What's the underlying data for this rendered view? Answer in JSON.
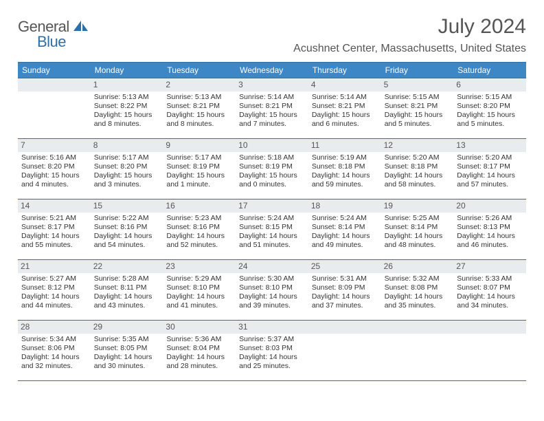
{
  "brand": {
    "word1": "General",
    "word2": "Blue"
  },
  "title": "July 2024",
  "location": "Acushnet Center, Massachusetts, United States",
  "colors": {
    "header_bg": "#3d87c7",
    "rule": "#2f6fa7",
    "daynum_bg": "#e9ecef",
    "text": "#333333",
    "muted": "#555555"
  },
  "day_names": [
    "Sunday",
    "Monday",
    "Tuesday",
    "Wednesday",
    "Thursday",
    "Friday",
    "Saturday"
  ],
  "weeks": [
    [
      {
        "n": "",
        "sunrise": "",
        "sunset": "",
        "daylight": ""
      },
      {
        "n": "1",
        "sunrise": "5:13 AM",
        "sunset": "8:22 PM",
        "daylight": "15 hours and 8 minutes."
      },
      {
        "n": "2",
        "sunrise": "5:13 AM",
        "sunset": "8:21 PM",
        "daylight": "15 hours and 8 minutes."
      },
      {
        "n": "3",
        "sunrise": "5:14 AM",
        "sunset": "8:21 PM",
        "daylight": "15 hours and 7 minutes."
      },
      {
        "n": "4",
        "sunrise": "5:14 AM",
        "sunset": "8:21 PM",
        "daylight": "15 hours and 6 minutes."
      },
      {
        "n": "5",
        "sunrise": "5:15 AM",
        "sunset": "8:21 PM",
        "daylight": "15 hours and 5 minutes."
      },
      {
        "n": "6",
        "sunrise": "5:15 AM",
        "sunset": "8:20 PM",
        "daylight": "15 hours and 5 minutes."
      }
    ],
    [
      {
        "n": "7",
        "sunrise": "5:16 AM",
        "sunset": "8:20 PM",
        "daylight": "15 hours and 4 minutes."
      },
      {
        "n": "8",
        "sunrise": "5:17 AM",
        "sunset": "8:20 PM",
        "daylight": "15 hours and 3 minutes."
      },
      {
        "n": "9",
        "sunrise": "5:17 AM",
        "sunset": "8:19 PM",
        "daylight": "15 hours and 1 minute."
      },
      {
        "n": "10",
        "sunrise": "5:18 AM",
        "sunset": "8:19 PM",
        "daylight": "15 hours and 0 minutes."
      },
      {
        "n": "11",
        "sunrise": "5:19 AM",
        "sunset": "8:18 PM",
        "daylight": "14 hours and 59 minutes."
      },
      {
        "n": "12",
        "sunrise": "5:20 AM",
        "sunset": "8:18 PM",
        "daylight": "14 hours and 58 minutes."
      },
      {
        "n": "13",
        "sunrise": "5:20 AM",
        "sunset": "8:17 PM",
        "daylight": "14 hours and 57 minutes."
      }
    ],
    [
      {
        "n": "14",
        "sunrise": "5:21 AM",
        "sunset": "8:17 PM",
        "daylight": "14 hours and 55 minutes."
      },
      {
        "n": "15",
        "sunrise": "5:22 AM",
        "sunset": "8:16 PM",
        "daylight": "14 hours and 54 minutes."
      },
      {
        "n": "16",
        "sunrise": "5:23 AM",
        "sunset": "8:16 PM",
        "daylight": "14 hours and 52 minutes."
      },
      {
        "n": "17",
        "sunrise": "5:24 AM",
        "sunset": "8:15 PM",
        "daylight": "14 hours and 51 minutes."
      },
      {
        "n": "18",
        "sunrise": "5:24 AM",
        "sunset": "8:14 PM",
        "daylight": "14 hours and 49 minutes."
      },
      {
        "n": "19",
        "sunrise": "5:25 AM",
        "sunset": "8:14 PM",
        "daylight": "14 hours and 48 minutes."
      },
      {
        "n": "20",
        "sunrise": "5:26 AM",
        "sunset": "8:13 PM",
        "daylight": "14 hours and 46 minutes."
      }
    ],
    [
      {
        "n": "21",
        "sunrise": "5:27 AM",
        "sunset": "8:12 PM",
        "daylight": "14 hours and 44 minutes."
      },
      {
        "n": "22",
        "sunrise": "5:28 AM",
        "sunset": "8:11 PM",
        "daylight": "14 hours and 43 minutes."
      },
      {
        "n": "23",
        "sunrise": "5:29 AM",
        "sunset": "8:10 PM",
        "daylight": "14 hours and 41 minutes."
      },
      {
        "n": "24",
        "sunrise": "5:30 AM",
        "sunset": "8:10 PM",
        "daylight": "14 hours and 39 minutes."
      },
      {
        "n": "25",
        "sunrise": "5:31 AM",
        "sunset": "8:09 PM",
        "daylight": "14 hours and 37 minutes."
      },
      {
        "n": "26",
        "sunrise": "5:32 AM",
        "sunset": "8:08 PM",
        "daylight": "14 hours and 35 minutes."
      },
      {
        "n": "27",
        "sunrise": "5:33 AM",
        "sunset": "8:07 PM",
        "daylight": "14 hours and 34 minutes."
      }
    ],
    [
      {
        "n": "28",
        "sunrise": "5:34 AM",
        "sunset": "8:06 PM",
        "daylight": "14 hours and 32 minutes."
      },
      {
        "n": "29",
        "sunrise": "5:35 AM",
        "sunset": "8:05 PM",
        "daylight": "14 hours and 30 minutes."
      },
      {
        "n": "30",
        "sunrise": "5:36 AM",
        "sunset": "8:04 PM",
        "daylight": "14 hours and 28 minutes."
      },
      {
        "n": "31",
        "sunrise": "5:37 AM",
        "sunset": "8:03 PM",
        "daylight": "14 hours and 25 minutes."
      },
      {
        "n": "",
        "sunrise": "",
        "sunset": "",
        "daylight": ""
      },
      {
        "n": "",
        "sunrise": "",
        "sunset": "",
        "daylight": ""
      },
      {
        "n": "",
        "sunrise": "",
        "sunset": "",
        "daylight": ""
      }
    ]
  ]
}
